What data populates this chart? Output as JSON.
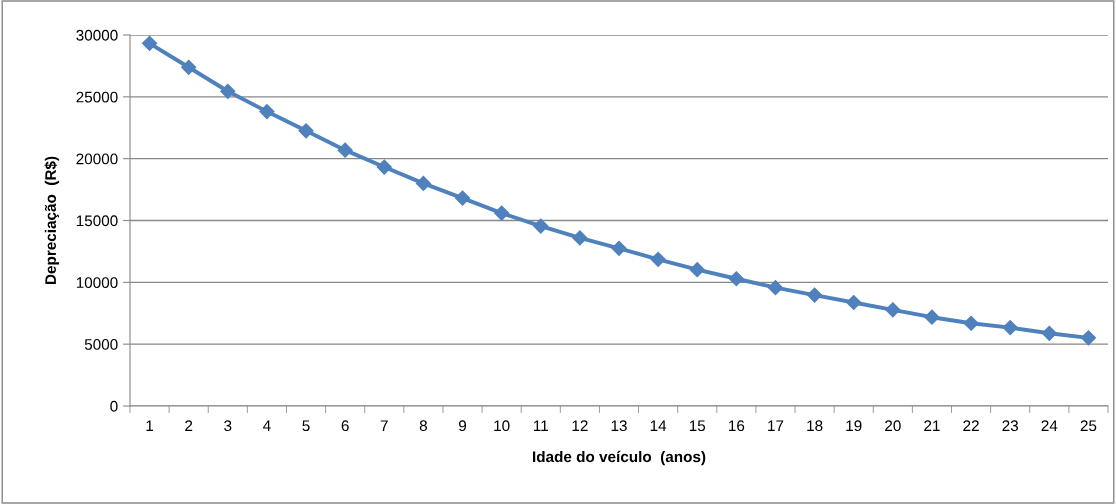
{
  "chart_data": {
    "type": "line",
    "xlabel": "Idade do veículo  (anos)",
    "ylabel": "Depreciação  (R$)",
    "categories": [
      "1",
      "2",
      "3",
      "4",
      "5",
      "6",
      "7",
      "8",
      "9",
      "10",
      "11",
      "12",
      "13",
      "14",
      "15",
      "16",
      "17",
      "18",
      "19",
      "20",
      "21",
      "22",
      "23",
      "24",
      "25"
    ],
    "series": [
      {
        "color": "#4f81bd",
        "values": [
          29330,
          27390,
          25450,
          23810,
          22250,
          20690,
          19320,
          18000,
          16810,
          15600,
          14550,
          13590,
          12750,
          11860,
          11020,
          10290,
          9570,
          8970,
          8370,
          7780,
          7180,
          6690,
          6340,
          5880,
          5510
        ]
      }
    ],
    "ylim": [
      0,
      30000
    ],
    "yticks": [
      0,
      5000,
      10000,
      15000,
      20000,
      25000,
      30000
    ],
    "grid": "y",
    "marker": "diamond",
    "line_style": "solid"
  }
}
